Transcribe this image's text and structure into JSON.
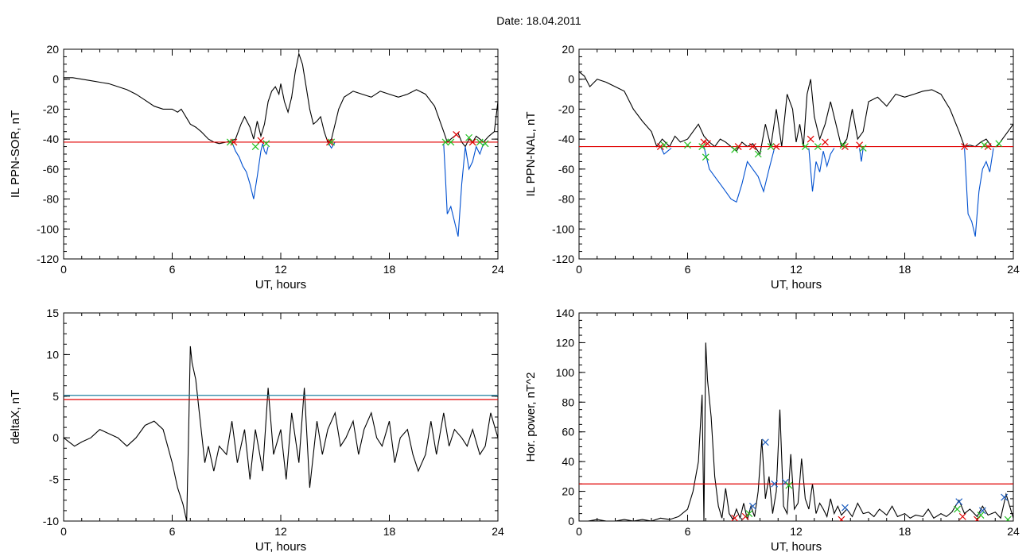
{
  "page": {
    "title": "Date:  18.04.2011"
  },
  "chart_data": [
    {
      "type": "line",
      "xlabel": "UT, hours",
      "ylabel": "IL PPN-SOR, nT",
      "xlim": [
        0,
        24
      ],
      "ylim": [
        -120,
        20
      ],
      "xticks": [
        "0",
        "6",
        "12",
        "18",
        "24"
      ],
      "yticks": [
        "-120",
        "-100",
        "-80",
        "-60",
        "-40",
        "-20",
        "0",
        "20"
      ],
      "threshold": {
        "value": -42,
        "color": "#e00000"
      },
      "series": [
        {
          "color": "#000000",
          "x": [
            0,
            0.5,
            1,
            1.5,
            2,
            2.5,
            3,
            3.5,
            4,
            4.5,
            5,
            5.5,
            6,
            6.3,
            6.5,
            6.8,
            7,
            7.3,
            7.6,
            8,
            8.3,
            8.6,
            9,
            9.3,
            9.5,
            9.8,
            10,
            10.3,
            10.5,
            10.7,
            10.9,
            11.1,
            11.3,
            11.5,
            11.7,
            11.9,
            12,
            12.2,
            12.4,
            12.6,
            12.8,
            13,
            13.2,
            13.4,
            13.6,
            13.8,
            14,
            14.2,
            14.4,
            14.6,
            14.8,
            15,
            15.2,
            15.5,
            16,
            16.5,
            17,
            17.5,
            18,
            18.5,
            19,
            19.5,
            20,
            20.5,
            21,
            21.2,
            21.4,
            21.6,
            21.8,
            22,
            22.2,
            22.4,
            22.6,
            22.8,
            23,
            23.2,
            23.5,
            23.8,
            24
          ],
          "y": [
            1,
            1,
            0,
            -1,
            -2,
            -3,
            -5,
            -7,
            -10,
            -14,
            -18,
            -20,
            -20,
            -22,
            -20,
            -26,
            -30,
            -32,
            -35,
            -40,
            -42,
            -43,
            -42,
            -41,
            -40,
            -30,
            -25,
            -32,
            -40,
            -28,
            -38,
            -30,
            -15,
            -8,
            -5,
            -10,
            -3,
            -15,
            -22,
            -12,
            5,
            17,
            10,
            -5,
            -20,
            -30,
            -28,
            -25,
            -35,
            -42,
            -40,
            -30,
            -20,
            -12,
            -8,
            -10,
            -12,
            -8,
            -10,
            -12,
            -10,
            -7,
            -10,
            -18,
            -35,
            -42,
            -40,
            -38,
            -36,
            -42,
            -45,
            -40,
            -42,
            -38,
            -40,
            -42,
            -38,
            -35,
            -15
          ]
        },
        {
          "color": "#0050d0",
          "x": [
            9.3,
            9.5,
            9.7,
            9.9,
            10.1,
            10.3,
            10.5,
            10.7,
            10.9,
            11,
            11.1,
            11.2,
            11.3
          ],
          "y": [
            -42,
            -48,
            -52,
            -58,
            -62,
            -70,
            -80,
            -65,
            -48,
            -43,
            -48,
            -50,
            -45
          ]
        },
        {
          "color": "#0050d0",
          "x": [
            14.6,
            14.8,
            15
          ],
          "y": [
            -42,
            -46,
            -42
          ]
        },
        {
          "color": "#0050d0",
          "x": [
            21,
            21.1,
            21.2,
            21.4,
            21.6,
            21.8,
            22,
            22.2,
            22.4,
            22.6,
            22.8,
            23,
            23.2
          ],
          "y": [
            -43,
            -65,
            -90,
            -85,
            -95,
            -105,
            -70,
            -45,
            -60,
            -55,
            -45,
            -50,
            -43
          ]
        }
      ],
      "markers": [
        {
          "color": "#e00000",
          "x": [
            9.4,
            10.9,
            14.7,
            21.7,
            22.6
          ],
          "y": [
            -42,
            -41,
            -42,
            -37,
            -42
          ]
        },
        {
          "color": "#20c020",
          "x": [
            9.2,
            10.6,
            11.2,
            14.8,
            21.1,
            21.4,
            22.4,
            23.0,
            23.3
          ],
          "y": [
            -42,
            -45,
            -43,
            -42,
            -42,
            -42,
            -39,
            -42,
            -43
          ]
        }
      ]
    },
    {
      "type": "line",
      "xlabel": "UT, hours",
      "ylabel": "IL PPN-NAL, nT",
      "xlim": [
        0,
        24
      ],
      "ylim": [
        -120,
        20
      ],
      "xticks": [
        "0",
        "6",
        "12",
        "18",
        "24"
      ],
      "yticks": [
        "-120",
        "-100",
        "-80",
        "-60",
        "-40",
        "-20",
        "0",
        "20"
      ],
      "threshold": {
        "value": -45,
        "color": "#e00000"
      },
      "series": [
        {
          "color": "#000000",
          "x": [
            0,
            0.3,
            0.6,
            1,
            1.5,
            2,
            2.5,
            3,
            3.5,
            4,
            4.3,
            4.6,
            5,
            5.3,
            5.6,
            6,
            6.3,
            6.6,
            6.9,
            7.2,
            7.5,
            7.8,
            8.1,
            8.4,
            8.7,
            9,
            9.3,
            9.6,
            10,
            10.3,
            10.6,
            10.9,
            11.2,
            11.5,
            11.8,
            12,
            12.2,
            12.4,
            12.6,
            12.8,
            13,
            13.3,
            13.6,
            13.9,
            14.2,
            14.5,
            14.8,
            15.1,
            15.4,
            15.7,
            16,
            16.5,
            17,
            17.5,
            18,
            18.5,
            19,
            19.5,
            20,
            20.5,
            21,
            21.3,
            21.6,
            21.9,
            22.2,
            22.5,
            22.8,
            23.1,
            23.4,
            23.7,
            24
          ],
          "y": [
            5,
            2,
            -5,
            0,
            -2,
            -5,
            -8,
            -20,
            -28,
            -35,
            -45,
            -40,
            -45,
            -38,
            -42,
            -40,
            -35,
            -30,
            -38,
            -42,
            -45,
            -40,
            -42,
            -45,
            -48,
            -42,
            -45,
            -43,
            -50,
            -30,
            -45,
            -20,
            -45,
            -10,
            -20,
            -42,
            -30,
            -45,
            -10,
            0,
            -25,
            -40,
            -30,
            -15,
            -30,
            -45,
            -40,
            -20,
            -40,
            -35,
            -15,
            -12,
            -18,
            -10,
            -12,
            -10,
            -8,
            -7,
            -10,
            -20,
            -35,
            -45,
            -44,
            -45,
            -42,
            -40,
            -45,
            -45,
            -40,
            -35,
            -30
          ]
        },
        {
          "color": "#0050d0",
          "x": [
            4.5,
            4.7,
            4.9,
            5.1
          ],
          "y": [
            -45,
            -50,
            -48,
            -46
          ]
        },
        {
          "color": "#0050d0",
          "x": [
            6.9,
            7.2,
            7.5,
            7.8,
            8.1,
            8.4,
            8.7,
            9,
            9.3,
            9.6,
            9.9,
            10.2,
            10.5,
            10.8
          ],
          "y": [
            -45,
            -60,
            -65,
            -70,
            -75,
            -80,
            -82,
            -70,
            -55,
            -60,
            -65,
            -75,
            -60,
            -46
          ]
        },
        {
          "color": "#0050d0",
          "x": [
            12.7,
            12.9,
            13.1,
            13.3,
            13.5,
            13.7,
            13.9,
            14.1
          ],
          "y": [
            -46,
            -75,
            -55,
            -62,
            -48,
            -58,
            -50,
            -46
          ]
        },
        {
          "color": "#0050d0",
          "x": [
            15.5,
            15.6,
            15.7
          ],
          "y": [
            -46,
            -55,
            -46
          ]
        },
        {
          "color": "#0050d0",
          "x": [
            21.3,
            21.5,
            21.7,
            21.9,
            22.1,
            22.3,
            22.5,
            22.7,
            22.9
          ],
          "y": [
            -46,
            -90,
            -95,
            -105,
            -75,
            -60,
            -55,
            -62,
            -46
          ]
        }
      ],
      "markers": [
        {
          "color": "#e00000",
          "x": [
            4.5,
            6.9,
            7.1,
            8.8,
            9.6,
            10.9,
            12.8,
            13.6,
            14.7,
            15.5,
            21.3,
            22.6
          ],
          "y": [
            -45,
            -42,
            -43,
            -45,
            -45,
            -45,
            -40,
            -42,
            -45,
            -44,
            -45,
            -45
          ]
        },
        {
          "color": "#20c020",
          "x": [
            4.7,
            6.0,
            6.8,
            7.0,
            8.6,
            9.9,
            10.6,
            12.5,
            13.2,
            14.6,
            15.7,
            22.4,
            23.2
          ],
          "y": [
            -44,
            -44,
            -45,
            -52,
            -47,
            -50,
            -45,
            -45,
            -45,
            -44,
            -46,
            -44,
            -43
          ]
        }
      ]
    },
    {
      "type": "line",
      "xlabel": "UT, hours",
      "ylabel": "deltaX, nT",
      "xlim": [
        0,
        24
      ],
      "ylim": [
        -10,
        15
      ],
      "xticks": [
        "0",
        "6",
        "12",
        "18",
        "24"
      ],
      "yticks": [
        "-10",
        "-5",
        "0",
        "5",
        "10",
        "15"
      ],
      "threshold": {
        "value": 4.6,
        "color": "#e00000"
      },
      "threshold2": {
        "value": 5.1,
        "color": "#2080a0"
      },
      "series": [
        {
          "color": "#000000",
          "x": [
            0,
            0.3,
            0.6,
            1,
            1.5,
            2,
            2.5,
            3,
            3.5,
            4,
            4.5,
            5,
            5.5,
            6,
            6.3,
            6.6,
            6.8,
            6.9,
            7,
            7.1,
            7.3,
            7.5,
            7.8,
            8,
            8.3,
            8.6,
            9,
            9.3,
            9.6,
            10,
            10.3,
            10.6,
            11,
            11.3,
            11.6,
            12,
            12.3,
            12.6,
            13,
            13.3,
            13.6,
            14,
            14.3,
            14.6,
            15,
            15.3,
            15.6,
            16,
            16.3,
            16.6,
            17,
            17.3,
            17.6,
            18,
            18.3,
            18.6,
            19,
            19.3,
            19.6,
            20,
            20.3,
            20.6,
            21,
            21.3,
            21.6,
            22,
            22.3,
            22.6,
            23,
            23.3,
            23.6,
            24
          ],
          "y": [
            0,
            -0.5,
            -1,
            -0.5,
            0,
            1,
            0.5,
            0,
            -1,
            0,
            1.5,
            2,
            1,
            -3,
            -6,
            -8,
            -10,
            0,
            11,
            9,
            7,
            3,
            -3,
            -1,
            -4,
            -1,
            -2,
            2,
            -3,
            1,
            -5,
            1,
            -4,
            6,
            -2,
            1,
            -5,
            3,
            -3,
            6,
            -6,
            2,
            -2,
            1,
            3,
            -1,
            0,
            2,
            -2,
            1,
            3,
            0,
            -1,
            2,
            -3,
            0,
            1,
            -2,
            -4,
            -2,
            2,
            -2,
            3,
            -1,
            1,
            0,
            -1,
            1,
            -2,
            -1,
            3,
            0
          ]
        }
      ],
      "markers": []
    },
    {
      "type": "line",
      "xlabel": "UT, hours",
      "ylabel": "Hor. power, nT^2",
      "xlim": [
        0,
        24
      ],
      "ylim": [
        0,
        140
      ],
      "xticks": [
        "0",
        "6",
        "12",
        "18",
        "24"
      ],
      "yticks": [
        "0",
        "20",
        "40",
        "60",
        "80",
        "100",
        "120",
        "140"
      ],
      "threshold": {
        "value": 25,
        "color": "#e00000"
      },
      "series": [
        {
          "color": "#000000",
          "x": [
            0,
            0.5,
            1,
            1.5,
            2,
            2.5,
            3,
            3.5,
            4,
            4.5,
            5,
            5.5,
            6,
            6.3,
            6.6,
            6.8,
            6.9,
            7,
            7.1,
            7.3,
            7.5,
            7.7,
            7.9,
            8.1,
            8.3,
            8.5,
            8.7,
            8.9,
            9.1,
            9.3,
            9.5,
            9.7,
            9.9,
            10.1,
            10.3,
            10.5,
            10.7,
            10.9,
            11.1,
            11.3,
            11.5,
            11.7,
            11.9,
            12.1,
            12.3,
            12.5,
            12.7,
            12.9,
            13.1,
            13.3,
            13.5,
            13.7,
            13.9,
            14.1,
            14.3,
            14.5,
            14.8,
            15.1,
            15.4,
            15.7,
            16,
            16.3,
            16.6,
            17,
            17.3,
            17.6,
            18,
            18.3,
            18.6,
            19,
            19.3,
            19.6,
            20,
            20.3,
            20.6,
            21,
            21.3,
            21.6,
            22,
            22.3,
            22.6,
            23,
            23.3,
            23.6,
            24
          ],
          "y": [
            0,
            0,
            1,
            0,
            0,
            1,
            0,
            1,
            0,
            2,
            1,
            3,
            8,
            20,
            40,
            85,
            0,
            120,
            95,
            70,
            30,
            10,
            2,
            22,
            5,
            1,
            8,
            2,
            12,
            1,
            10,
            3,
            20,
            55,
            15,
            30,
            5,
            20,
            75,
            10,
            5,
            45,
            8,
            12,
            42,
            15,
            8,
            25,
            5,
            12,
            8,
            3,
            15,
            5,
            10,
            4,
            8,
            3,
            12,
            5,
            6,
            3,
            8,
            4,
            10,
            3,
            5,
            2,
            4,
            3,
            8,
            2,
            5,
            3,
            6,
            14,
            5,
            8,
            3,
            10,
            4,
            6,
            2,
            18,
            2
          ]
        }
      ],
      "markers": [
        {
          "color": "#2060c0",
          "x": [
            9.6,
            10.3,
            10.8,
            11.4,
            14.7,
            21.0,
            22.3,
            23.5
          ],
          "y": [
            10,
            53,
            25,
            26,
            9,
            13,
            7,
            16
          ]
        },
        {
          "color": "#e00000",
          "x": [
            8.6,
            9.2,
            14.5,
            21.2,
            22.0
          ],
          "y": [
            2,
            3,
            1,
            3,
            1
          ]
        },
        {
          "color": "#20c020",
          "x": [
            9.4,
            11.6,
            20.9,
            22.2,
            23.7
          ],
          "y": [
            5,
            24,
            8,
            4,
            1
          ]
        }
      ]
    }
  ]
}
